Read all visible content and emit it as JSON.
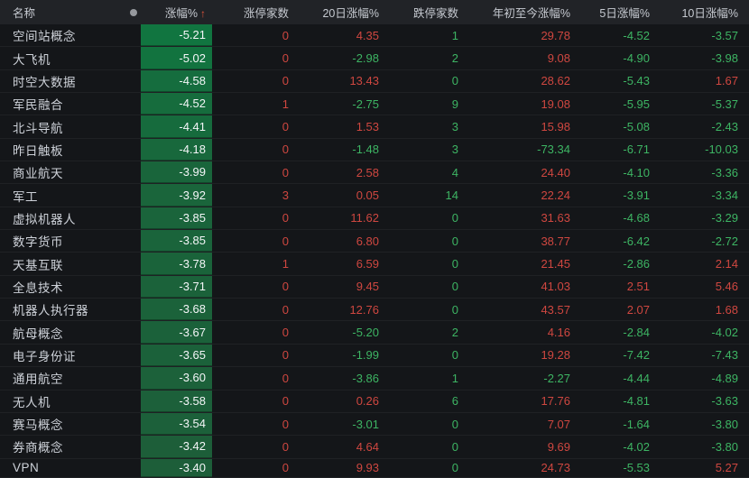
{
  "table": {
    "columns": [
      "名称",
      "涨幅%",
      "涨停家数",
      "20日涨幅%",
      "跌停家数",
      "年初至今涨幅%",
      "5日涨幅%",
      "10日涨幅%"
    ],
    "sort_arrow": "↑",
    "rows": [
      {
        "name": "空间站概念",
        "change": "-5.21",
        "limit_up": "0",
        "d20": "4.35",
        "limit_down": "1",
        "ytd": "29.78",
        "d5": "-4.52",
        "d10": "-3.57"
      },
      {
        "name": "大飞机",
        "change": "-5.02",
        "limit_up": "0",
        "d20": "-2.98",
        "limit_down": "2",
        "ytd": "9.08",
        "d5": "-4.90",
        "d10": "-3.98"
      },
      {
        "name": "时空大数据",
        "change": "-4.58",
        "limit_up": "0",
        "d20": "13.43",
        "limit_down": "0",
        "ytd": "28.62",
        "d5": "-5.43",
        "d10": "1.67"
      },
      {
        "name": "军民融合",
        "change": "-4.52",
        "limit_up": "1",
        "d20": "-2.75",
        "limit_down": "9",
        "ytd": "19.08",
        "d5": "-5.95",
        "d10": "-5.37"
      },
      {
        "name": "北斗导航",
        "change": "-4.41",
        "limit_up": "0",
        "d20": "1.53",
        "limit_down": "3",
        "ytd": "15.98",
        "d5": "-5.08",
        "d10": "-2.43"
      },
      {
        "name": "昨日触板",
        "change": "-4.18",
        "limit_up": "0",
        "d20": "-1.48",
        "limit_down": "3",
        "ytd": "-73.34",
        "d5": "-6.71",
        "d10": "-10.03"
      },
      {
        "name": "商业航天",
        "change": "-3.99",
        "limit_up": "0",
        "d20": "2.58",
        "limit_down": "4",
        "ytd": "24.40",
        "d5": "-4.10",
        "d10": "-3.36"
      },
      {
        "name": "军工",
        "change": "-3.92",
        "limit_up": "3",
        "d20": "0.05",
        "limit_down": "14",
        "ytd": "22.24",
        "d5": "-3.91",
        "d10": "-3.34"
      },
      {
        "name": "虚拟机器人",
        "change": "-3.85",
        "limit_up": "0",
        "d20": "11.62",
        "limit_down": "0",
        "ytd": "31.63",
        "d5": "-4.68",
        "d10": "-3.29"
      },
      {
        "name": "数字货币",
        "change": "-3.85",
        "limit_up": "0",
        "d20": "6.80",
        "limit_down": "0",
        "ytd": "38.77",
        "d5": "-6.42",
        "d10": "-2.72"
      },
      {
        "name": "天基互联",
        "change": "-3.78",
        "limit_up": "1",
        "d20": "6.59",
        "limit_down": "0",
        "ytd": "21.45",
        "d5": "-2.86",
        "d10": "2.14"
      },
      {
        "name": "全息技术",
        "change": "-3.71",
        "limit_up": "0",
        "d20": "9.45",
        "limit_down": "0",
        "ytd": "41.03",
        "d5": "2.51",
        "d10": "5.46"
      },
      {
        "name": "机器人执行器",
        "change": "-3.68",
        "limit_up": "0",
        "d20": "12.76",
        "limit_down": "0",
        "ytd": "43.57",
        "d5": "2.07",
        "d10": "1.68"
      },
      {
        "name": "航母概念",
        "change": "-3.67",
        "limit_up": "0",
        "d20": "-5.20",
        "limit_down": "2",
        "ytd": "4.16",
        "d5": "-2.84",
        "d10": "-4.02"
      },
      {
        "name": "电子身份证",
        "change": "-3.65",
        "limit_up": "0",
        "d20": "-1.99",
        "limit_down": "0",
        "ytd": "19.28",
        "d5": "-7.42",
        "d10": "-7.43"
      },
      {
        "name": "通用航空",
        "change": "-3.60",
        "limit_up": "0",
        "d20": "-3.86",
        "limit_down": "1",
        "ytd": "-2.27",
        "d5": "-4.44",
        "d10": "-4.89"
      },
      {
        "name": "无人机",
        "change": "-3.58",
        "limit_up": "0",
        "d20": "0.26",
        "limit_down": "6",
        "ytd": "17.76",
        "d5": "-4.81",
        "d10": "-3.63"
      },
      {
        "name": "赛马概念",
        "change": "-3.54",
        "limit_up": "0",
        "d20": "-3.01",
        "limit_down": "0",
        "ytd": "7.07",
        "d5": "-1.64",
        "d10": "-3.80"
      },
      {
        "name": "券商概念",
        "change": "-3.42",
        "limit_up": "0",
        "d20": "4.64",
        "limit_down": "0",
        "ytd": "9.69",
        "d5": "-4.02",
        "d10": "-3.80"
      },
      {
        "name": "VPN",
        "change": "-3.40",
        "limit_up": "0",
        "d20": "9.93",
        "limit_down": "0",
        "ytd": "24.73",
        "d5": "-5.53",
        "d10": "5.27"
      }
    ]
  },
  "colors": {
    "up_red": "#cf4740",
    "down_green": "#3db463",
    "cell_green_strong": "#117540",
    "cell_green_weak": "#1d5e39",
    "sort_arrow": "#e2543c"
  }
}
